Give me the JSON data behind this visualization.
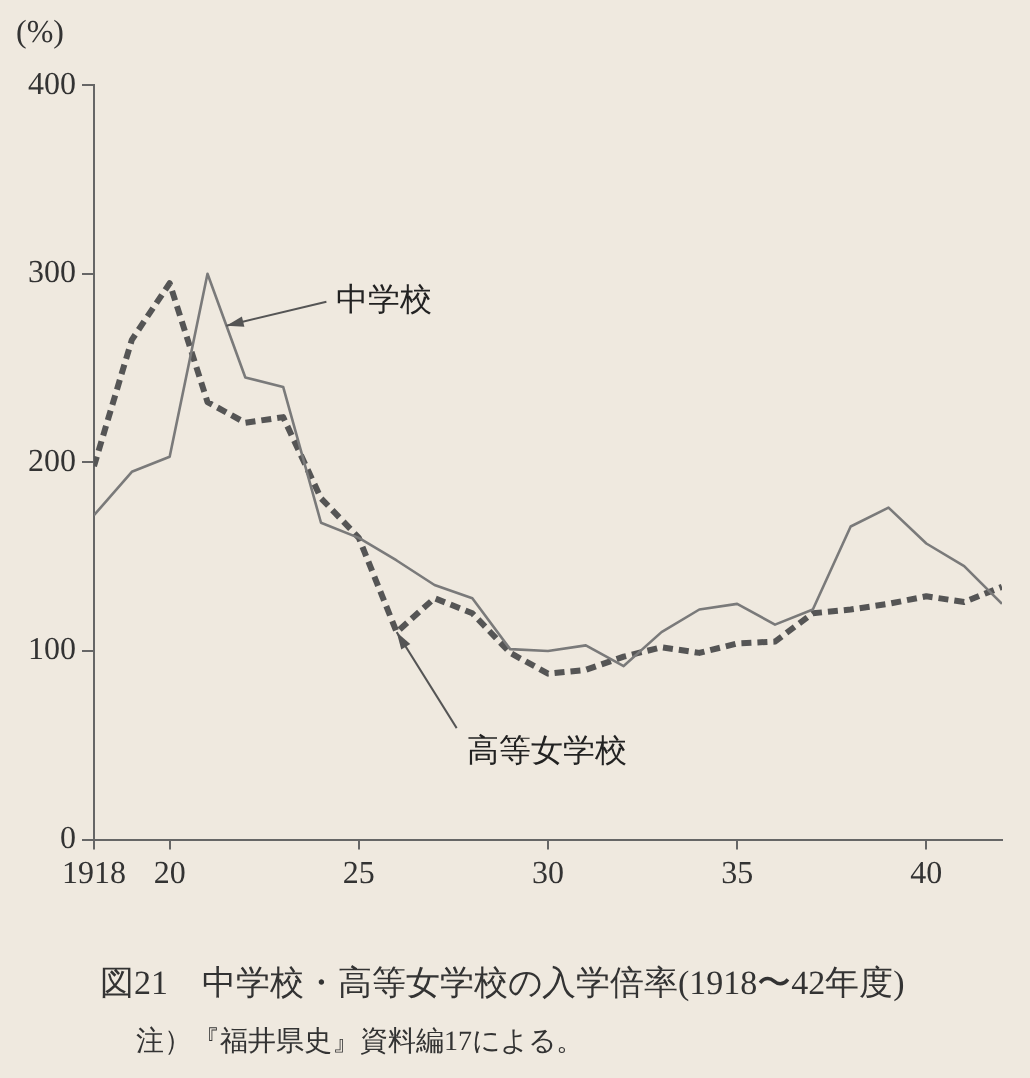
{
  "chart_data": {
    "type": "line",
    "title": "図21　中学校・高等女学校の入学倍率(1918〜42年度)",
    "ylabel": "(%)",
    "x": [
      1918,
      1919,
      1920,
      1921,
      1922,
      1923,
      1924,
      1925,
      1926,
      1927,
      1928,
      1929,
      1930,
      1931,
      1932,
      1933,
      1934,
      1935,
      1936,
      1937,
      1938,
      1939,
      1940,
      1941,
      1942
    ],
    "series": [
      {
        "color": "#7a7a7a",
        "line_style": "solid",
        "values": [
          172,
          195,
          203,
          300,
          245,
          240,
          168,
          160,
          148,
          135,
          128,
          101,
          100,
          103,
          92,
          110,
          122,
          125,
          114,
          122,
          166,
          176,
          157,
          145,
          125
        ]
      },
      {
        "color": "#555555",
        "line_style": "dashed",
        "values": [
          198,
          265,
          295,
          232,
          221,
          224,
          181,
          160,
          110,
          128,
          120,
          99,
          88,
          90,
          97,
          102,
          99,
          104,
          105,
          120,
          122,
          125,
          129,
          126,
          134
        ]
      }
    ],
    "annotations": [
      {
        "text": "中学校",
        "x": 1921.5,
        "y": 272.5
      },
      {
        "text": "高等女学校",
        "x": 1926,
        "y": 110
      },
      "注）『福井県史』資料編17による。"
    ],
    "xlim": [
      1918,
      1942
    ],
    "xticks": [
      1918,
      {
        "value": 1920,
        "label": "20"
      },
      {
        "value": 1925,
        "label": "25"
      },
      {
        "value": 1930,
        "label": "30"
      },
      {
        "value": 1935,
        "label": "35"
      },
      {
        "value": 1940,
        "label": "40"
      }
    ],
    "ylim": [
      0,
      400
    ],
    "yticks": [
      0,
      100,
      200,
      300,
      400
    ],
    "grid": false,
    "legend": false,
    "marker": "none"
  }
}
